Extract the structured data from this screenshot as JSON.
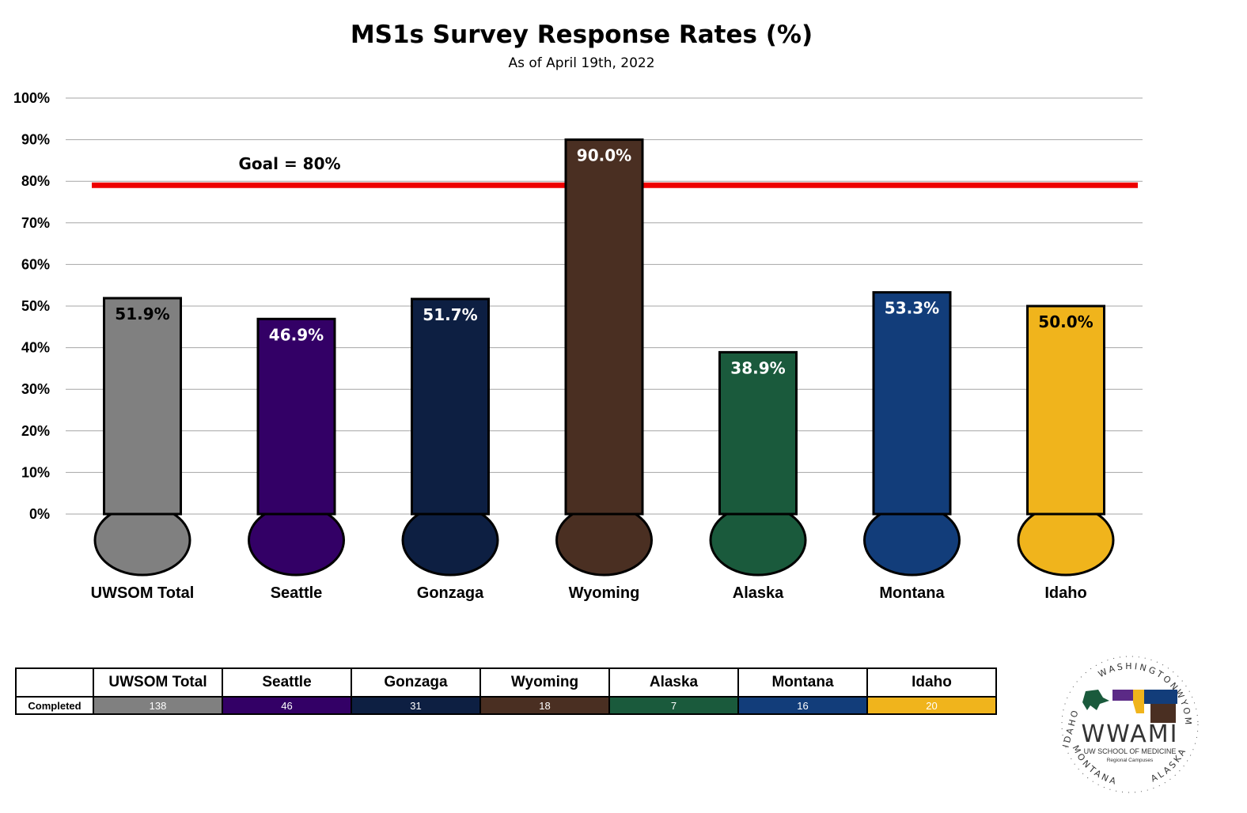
{
  "chart_data": {
    "type": "bar",
    "title": "MS1s Survey Response Rates (%)",
    "subtitle": "As of April 19th, 2022",
    "categories": [
      "UWSOM Total",
      "Seattle",
      "Gonzaga",
      "Wyoming",
      "Alaska",
      "Montana",
      "Idaho"
    ],
    "values": [
      51.9,
      46.9,
      51.7,
      90.0,
      38.9,
      53.3,
      50.0
    ],
    "data_labels": [
      "51.9%",
      "46.9%",
      "51.7%",
      "90.0%",
      "38.9%",
      "53.3%",
      "50.0%"
    ],
    "colors": [
      "#808080",
      "#330066",
      "#0d1f42",
      "#4a2f22",
      "#1a5a3c",
      "#123d7a",
      "#f0b41c"
    ],
    "label_colors": [
      "#000000",
      "#ffffff",
      "#ffffff",
      "#ffffff",
      "#ffffff",
      "#ffffff",
      "#000000"
    ],
    "ylim": [
      0,
      100
    ],
    "yticks": [
      "0%",
      "10%",
      "20%",
      "30%",
      "40%",
      "50%",
      "60%",
      "70%",
      "80%",
      "90%",
      "100%"
    ],
    "grid": true,
    "goal_value": 80,
    "goal_label": "Goal = 80%",
    "goal_color": "#ee0000"
  },
  "table": {
    "headers": [
      "UWSOM Total",
      "Seattle",
      "Gonzaga",
      "Wyoming",
      "Alaska",
      "Montana",
      "Idaho"
    ],
    "row_label": "Completed",
    "values": [
      "138",
      "46",
      "31",
      "18",
      "7",
      "16",
      "20"
    ]
  },
  "logo": {
    "main": "WWAMI",
    "sub1": "UW SCHOOL OF MEDICINE",
    "sub2": "Regional Campuses",
    "ring_words": [
      "WASHINGTON",
      "WYOMING",
      "ALASKA",
      "MONTANA",
      "IDAHO"
    ]
  }
}
